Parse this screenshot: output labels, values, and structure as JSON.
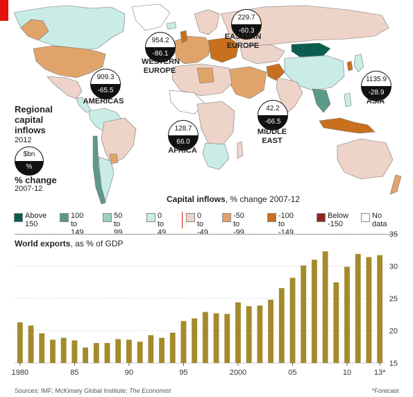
{
  "map": {
    "title": "Regional capital inflows",
    "year": "2012",
    "key_badge": {
      "top": "$bn",
      "bottom": "%"
    },
    "key_change_label": "% change",
    "key_change_years": "2007-12",
    "regions": [
      {
        "name": "WESTERN EUROPE",
        "bn": "954.2",
        "pct": "-86.1"
      },
      {
        "name": "EASTERN EUROPE",
        "bn": "229.7",
        "pct": "-60.3"
      },
      {
        "name": "AMERICAS",
        "bn": "909.3",
        "pct": "-65.5"
      },
      {
        "name": "ASIA",
        "bn": "1135.9",
        "pct": "-28.9"
      },
      {
        "name": "MIDDLE EAST",
        "bn": "42.2",
        "pct": "-66.5"
      },
      {
        "name": "AFRICA",
        "bn": "128.7",
        "pct": "66.0"
      }
    ]
  },
  "legend": {
    "title_bold": "Capital inflows",
    "title_rest": ", % change 2007-12",
    "items": [
      {
        "label": "Above\n150",
        "color": "#0b5e4f"
      },
      {
        "label": "100 to\n149",
        "color": "#5b9a8b"
      },
      {
        "label": "50 to\n99",
        "color": "#9ecfc4"
      },
      {
        "label": "0 to\n49",
        "color": "#c9ece6"
      },
      {
        "label": "0 to\n-49",
        "color": "#edd3c8"
      },
      {
        "label": "-50 to\n-99",
        "color": "#e0a46a"
      },
      {
        "label": "-100 to\n-149",
        "color": "#c8701e"
      },
      {
        "label": "Below\n-150",
        "color": "#8e2a1d"
      },
      {
        "label": "No data",
        "color": "#ffffff"
      }
    ]
  },
  "colors": {
    "bar": "#a48a2c",
    "grid": "#c9c9c9",
    "ocean": "#ffffff",
    "nodata": "#ffffff"
  },
  "chart_data": {
    "type": "bar",
    "title": "World exports",
    "subtitle": ", as % of GDP",
    "x": [
      1980,
      1981,
      1982,
      1983,
      1984,
      1985,
      1986,
      1987,
      1988,
      1989,
      1990,
      1991,
      1992,
      1993,
      1994,
      1995,
      1996,
      1997,
      1998,
      1999,
      2000,
      2001,
      2002,
      2003,
      2004,
      2005,
      2006,
      2007,
      2008,
      2009,
      2010,
      2011,
      2012,
      2013
    ],
    "values": [
      21.3,
      20.8,
      19.6,
      18.6,
      18.9,
      18.5,
      17.4,
      18.1,
      18.1,
      18.7,
      18.6,
      18.3,
      19.3,
      18.9,
      19.7,
      21.5,
      21.9,
      22.9,
      22.7,
      22.6,
      24.4,
      23.8,
      23.9,
      24.8,
      26.6,
      28.2,
      30.1,
      31.0,
      32.3,
      27.5,
      29.9,
      31.9,
      31.4,
      31.7
    ],
    "x_tick_labels": [
      "1980",
      "85",
      "90",
      "95",
      "2000",
      "05",
      "10",
      "13*"
    ],
    "y_ticks": [
      15,
      20,
      25,
      30,
      35
    ],
    "ylim": [
      15,
      35
    ],
    "grid": true,
    "forecast_note": "*Forecast"
  },
  "source": {
    "text": "Sources: IMF; McKinsey Global Institute; ",
    "italic": "The Economist"
  }
}
